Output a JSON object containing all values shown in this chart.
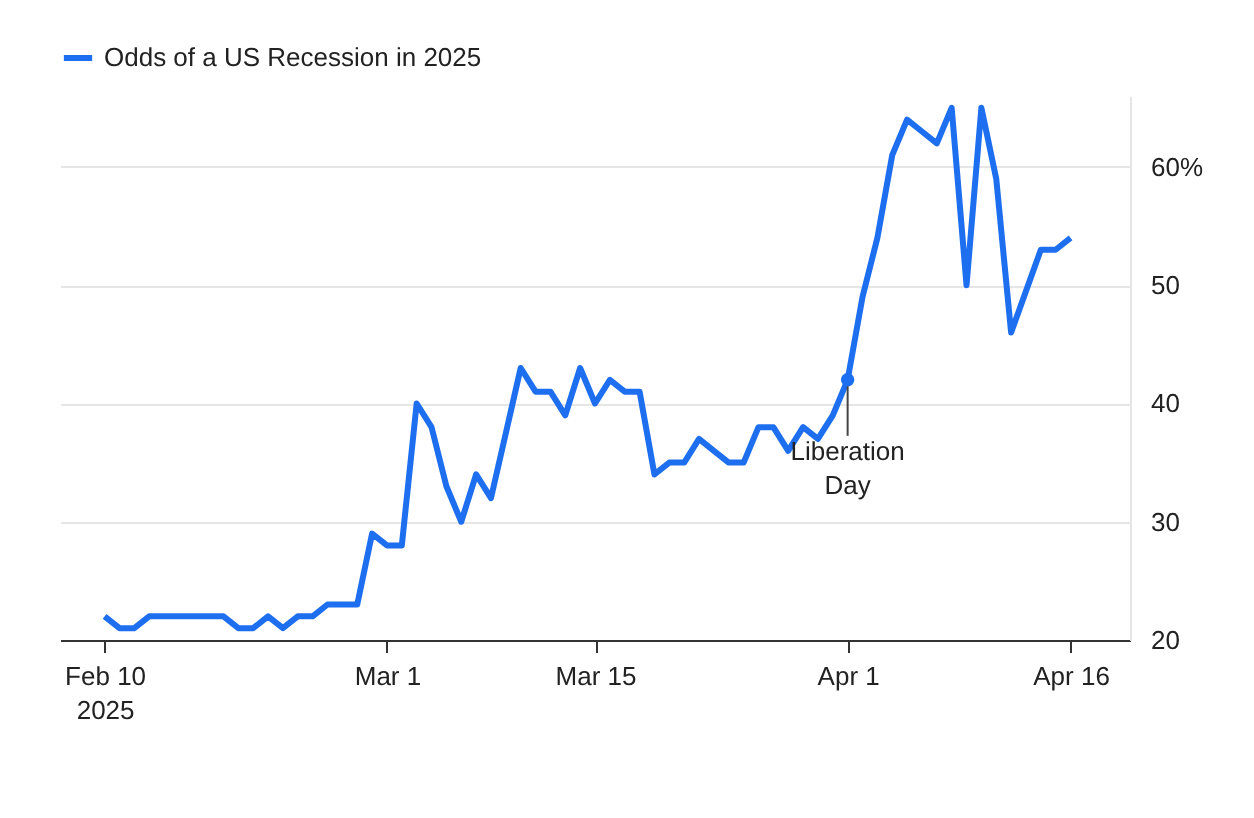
{
  "chart_data": {
    "type": "line",
    "x": [
      "2025-02-10",
      "2025-02-11",
      "2025-02-12",
      "2025-02-13",
      "2025-02-14",
      "2025-02-15",
      "2025-02-16",
      "2025-02-17",
      "2025-02-18",
      "2025-02-19",
      "2025-02-20",
      "2025-02-21",
      "2025-02-22",
      "2025-02-23",
      "2025-02-24",
      "2025-02-25",
      "2025-02-26",
      "2025-02-27",
      "2025-02-28",
      "2025-03-01",
      "2025-03-02",
      "2025-03-03",
      "2025-03-04",
      "2025-03-05",
      "2025-03-06",
      "2025-03-07",
      "2025-03-08",
      "2025-03-09",
      "2025-03-10",
      "2025-03-11",
      "2025-03-12",
      "2025-03-13",
      "2025-03-14",
      "2025-03-15",
      "2025-03-16",
      "2025-03-17",
      "2025-03-18",
      "2025-03-19",
      "2025-03-20",
      "2025-03-21",
      "2025-03-22",
      "2025-03-23",
      "2025-03-24",
      "2025-03-25",
      "2025-03-26",
      "2025-03-27",
      "2025-03-28",
      "2025-03-29",
      "2025-03-30",
      "2025-03-31",
      "2025-04-01",
      "2025-04-02",
      "2025-04-03",
      "2025-04-04",
      "2025-04-05",
      "2025-04-06",
      "2025-04-07",
      "2025-04-08",
      "2025-04-09",
      "2025-04-10",
      "2025-04-11",
      "2025-04-12",
      "2025-04-13",
      "2025-04-14",
      "2025-04-15",
      "2025-04-16"
    ],
    "series": [
      {
        "name": "Odds of a US Recession in 2025",
        "color": "#1e6ff0",
        "values": [
          22,
          21,
          21,
          22,
          22,
          22,
          22,
          22,
          22,
          21,
          21,
          22,
          21,
          22,
          22,
          23,
          23,
          23,
          29,
          28,
          28,
          40,
          38,
          33,
          30,
          34,
          32,
          37.5,
          43,
          41,
          41,
          39,
          43,
          40,
          42,
          41,
          41,
          34,
          35,
          35,
          37,
          36,
          35,
          35,
          38,
          38,
          36,
          38,
          37,
          39,
          42,
          49,
          54,
          61,
          64,
          63,
          62,
          65,
          50,
          65,
          59,
          46,
          49.5,
          53,
          53,
          54
        ]
      }
    ],
    "xlim": [
      "2025-02-07",
      "2025-04-20"
    ],
    "xticks": [
      {
        "value": "2025-02-10",
        "label": "Feb 10\n2025"
      },
      {
        "value": "2025-03-01",
        "label": "Mar 1"
      },
      {
        "value": "2025-03-15",
        "label": "Mar 15"
      },
      {
        "value": "2025-04-01",
        "label": "Apr 1"
      },
      {
        "value": "2025-04-16",
        "label": "Apr 16"
      }
    ],
    "ylim": [
      20,
      66
    ],
    "yticks": [
      20,
      30,
      40,
      50,
      {
        "value": 60,
        "label": "60%"
      }
    ],
    "annotations": [
      {
        "text": "Liberation\nDay",
        "x": "2025-04-01",
        "y": 42
      }
    ],
    "grid": "y",
    "legend": "top left",
    "marker": "none",
    "line_style": "solid"
  }
}
